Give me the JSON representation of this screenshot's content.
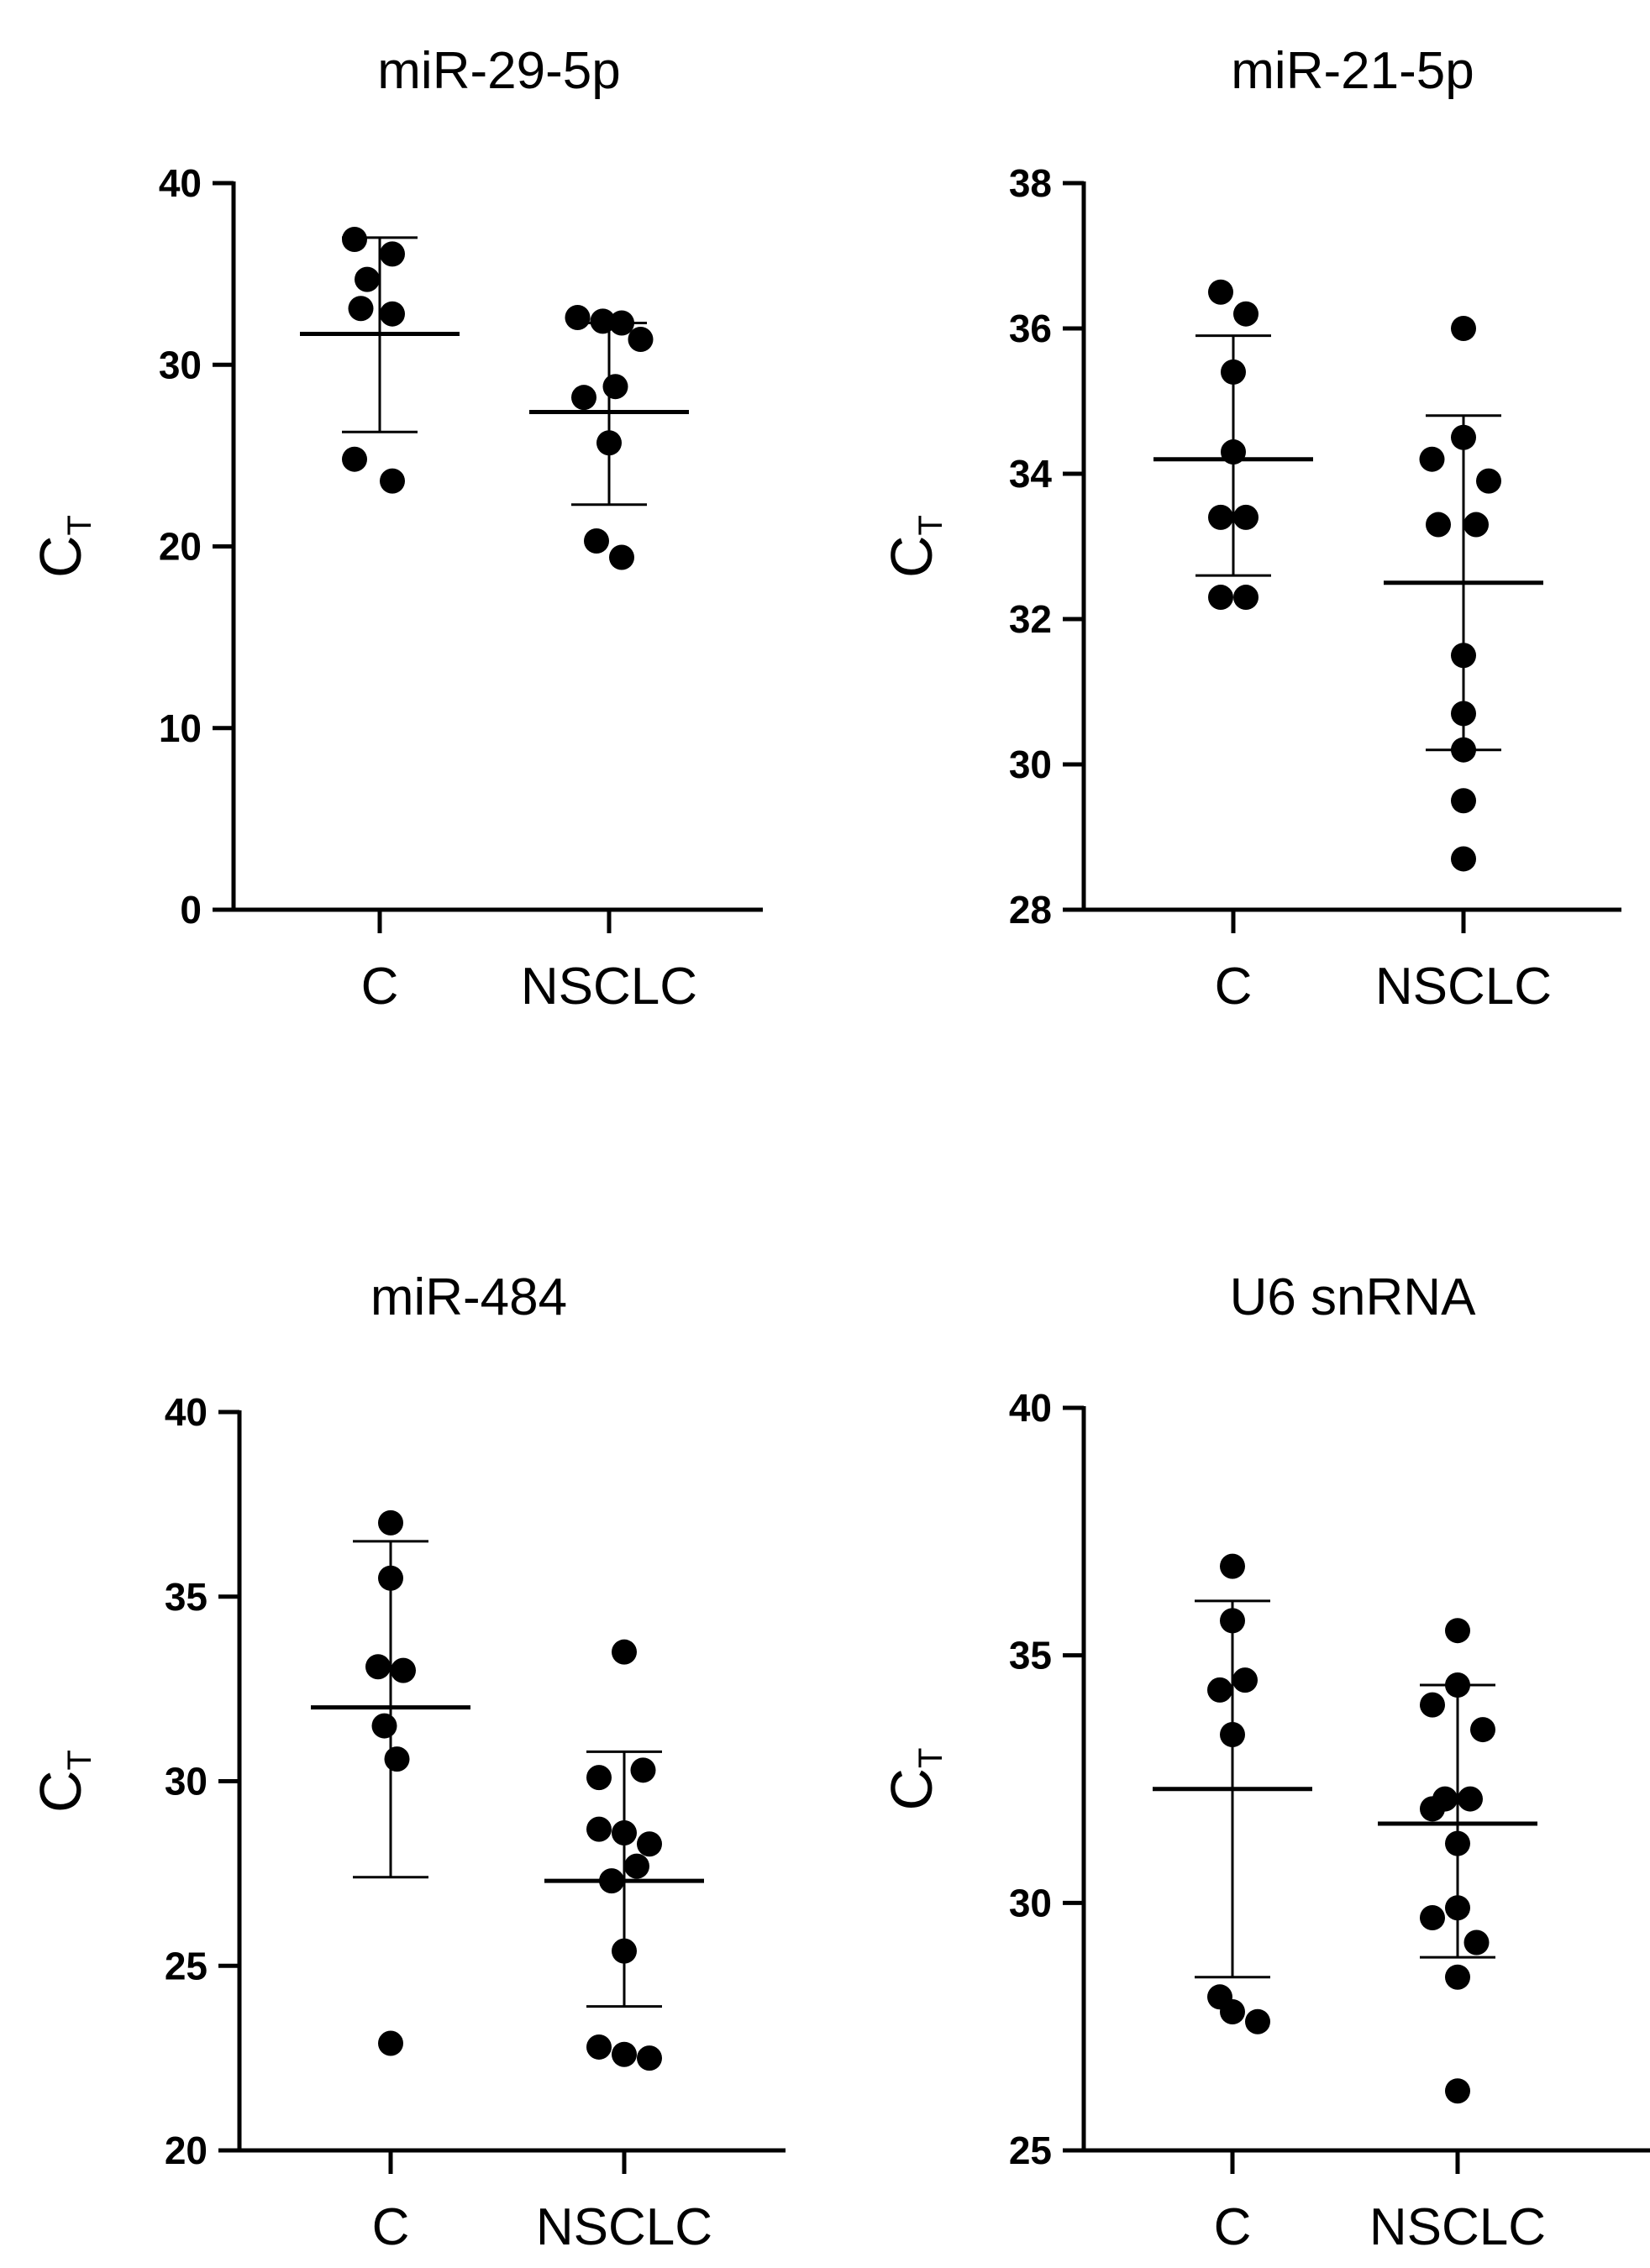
{
  "chart_data": [
    {
      "type": "scatter",
      "title": "miR-29-5p",
      "ylabel": "C",
      "ylabel_subscript": "T",
      "categories": [
        "C",
        "NSCLC"
      ],
      "ylim": [
        0,
        40
      ],
      "yticks": [
        0,
        10,
        20,
        30,
        40
      ],
      "series": [
        {
          "name": "C",
          "mean": 31.7,
          "sd_upper": 37.0,
          "sd_lower": 26.3,
          "points": [
            [
              -0.2,
              36.9
            ],
            [
              0.1,
              36.1
            ],
            [
              -0.1,
              34.7
            ],
            [
              -0.15,
              33.1
            ],
            [
              0.1,
              32.8
            ],
            [
              -0.2,
              24.8
            ],
            [
              0.1,
              23.6
            ]
          ]
        },
        {
          "name": "NSCLC",
          "mean": 27.4,
          "sd_upper": 32.3,
          "sd_lower": 22.3,
          "points": [
            [
              -0.25,
              32.6
            ],
            [
              -0.05,
              32.4
            ],
            [
              0.1,
              32.3
            ],
            [
              0.25,
              31.4
            ],
            [
              -0.2,
              28.2
            ],
            [
              0.05,
              28.8
            ],
            [
              0.0,
              25.7
            ],
            [
              -0.1,
              20.3
            ],
            [
              0.1,
              19.4
            ]
          ]
        }
      ]
    },
    {
      "type": "scatter",
      "title": "miR-21-5p",
      "ylabel": "C",
      "ylabel_subscript": "T",
      "categories": [
        "C",
        "NSCLC"
      ],
      "ylim": [
        28,
        38
      ],
      "yticks": [
        28,
        30,
        32,
        34,
        36,
        38
      ],
      "series": [
        {
          "name": "C",
          "mean": 34.2,
          "sd_upper": 35.9,
          "sd_lower": 32.6,
          "points": [
            [
              -0.1,
              36.5
            ],
            [
              0.1,
              36.2
            ],
            [
              0.0,
              35.4
            ],
            [
              0.0,
              34.3
            ],
            [
              -0.1,
              33.4
            ],
            [
              0.1,
              33.4
            ],
            [
              -0.1,
              32.3
            ],
            [
              0.1,
              32.3
            ]
          ]
        },
        {
          "name": "NSCLC",
          "mean": 32.5,
          "sd_upper": 34.8,
          "sd_lower": 30.2,
          "points": [
            [
              0.0,
              36.0
            ],
            [
              -0.25,
              34.2
            ],
            [
              0.0,
              34.5
            ],
            [
              0.2,
              33.9
            ],
            [
              -0.2,
              33.3
            ],
            [
              0.1,
              33.3
            ],
            [
              0.0,
              31.5
            ],
            [
              0.0,
              30.7
            ],
            [
              0.0,
              30.2
            ],
            [
              0.0,
              29.5
            ],
            [
              0.0,
              28.7
            ]
          ]
        }
      ]
    },
    {
      "type": "scatter",
      "title": "miR-484",
      "ylabel": "C",
      "ylabel_subscript": "T",
      "categories": [
        "C",
        "NSCLC"
      ],
      "ylim": [
        20,
        40
      ],
      "yticks": [
        20,
        25,
        30,
        35,
        40
      ],
      "series": [
        {
          "name": "C",
          "mean": 32.0,
          "sd_upper": 36.5,
          "sd_lower": 27.4,
          "points": [
            [
              0.0,
              37.0
            ],
            [
              0.0,
              35.5
            ],
            [
              -0.1,
              33.1
            ],
            [
              0.1,
              33.0
            ],
            [
              -0.05,
              31.5
            ],
            [
              0.05,
              30.6
            ],
            [
              0.0,
              22.9
            ]
          ]
        },
        {
          "name": "NSCLC",
          "mean": 27.3,
          "sd_upper": 30.8,
          "sd_lower": 23.9,
          "points": [
            [
              0.0,
              33.5
            ],
            [
              -0.2,
              30.1
            ],
            [
              0.15,
              30.3
            ],
            [
              -0.2,
              28.7
            ],
            [
              0.0,
              28.6
            ],
            [
              0.2,
              28.3
            ],
            [
              0.1,
              27.7
            ],
            [
              -0.1,
              27.3
            ],
            [
              0.0,
              25.4
            ],
            [
              -0.2,
              22.8
            ],
            [
              0.0,
              22.6
            ],
            [
              0.2,
              22.5
            ]
          ]
        }
      ]
    },
    {
      "type": "scatter",
      "title": "U6 snRNA",
      "ylabel": "C",
      "ylabel_subscript": "T",
      "categories": [
        "C",
        "NSCLC"
      ],
      "ylim": [
        25,
        40
      ],
      "yticks": [
        25,
        30,
        35,
        40
      ],
      "series": [
        {
          "name": "C",
          "mean": 32.3,
          "sd_upper": 36.1,
          "sd_lower": 28.5,
          "points": [
            [
              0.0,
              36.8
            ],
            [
              0.0,
              35.7
            ],
            [
              -0.1,
              34.3
            ],
            [
              0.1,
              34.5
            ],
            [
              0.0,
              33.4
            ],
            [
              -0.1,
              28.1
            ],
            [
              0.0,
              27.8
            ],
            [
              0.2,
              27.6
            ]
          ]
        },
        {
          "name": "NSCLC",
          "mean": 31.6,
          "sd_upper": 34.4,
          "sd_lower": 28.9,
          "points": [
            [
              0.0,
              35.5
            ],
            [
              0.0,
              34.4
            ],
            [
              -0.2,
              34.0
            ],
            [
              0.2,
              33.5
            ],
            [
              -0.1,
              32.1
            ],
            [
              0.1,
              32.1
            ],
            [
              -0.2,
              31.9
            ],
            [
              0.0,
              31.2
            ],
            [
              0.0,
              29.9
            ],
            [
              -0.2,
              29.7
            ],
            [
              0.15,
              29.2
            ],
            [
              0.0,
              28.5
            ],
            [
              0.0,
              26.2
            ]
          ]
        }
      ]
    }
  ]
}
